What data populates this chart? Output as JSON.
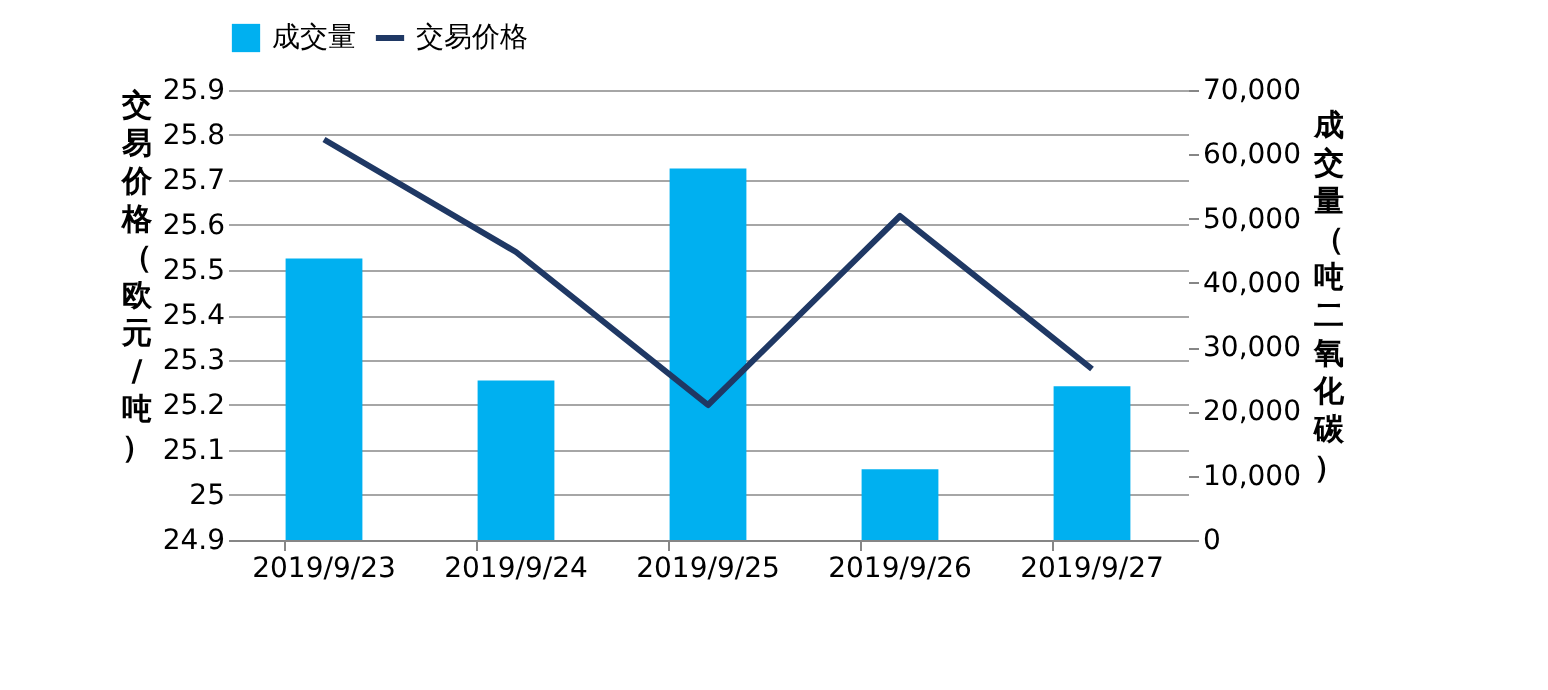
{
  "chart_data": {
    "type": "bar",
    "categories": [
      "2019/9/23",
      "2019/9/24",
      "2019/9/25",
      "2019/9/26",
      "2019/9/27"
    ],
    "series": [
      {
        "name": "成交量",
        "axis": "y2",
        "color": "#00b0f0",
        "values": [
          43800,
          24800,
          57800,
          11000,
          23900
        ]
      },
      {
        "name": "交易价格",
        "type": "line",
        "color": "#1f3864",
        "values": [
          25.79,
          25.54,
          25.2,
          25.62,
          25.28
        ]
      }
    ],
    "ylabel": "交易价格（欧元/吨）",
    "y2label": "成交量（吨二氧化碳）",
    "ylim": [
      24.9,
      25.9
    ],
    "yticks": [
      24.9,
      25,
      25.1,
      25.2,
      25.3,
      25.4,
      25.5,
      25.6,
      25.7,
      25.8,
      25.9
    ],
    "y2lim": [
      0,
      70000
    ],
    "y2ticks": [
      0,
      {
        "value": 10000,
        "label": "10,000"
      },
      {
        "value": 20000,
        "label": "20,000"
      },
      {
        "value": 30000,
        "label": "30,000"
      },
      {
        "value": 40000,
        "label": "40,000"
      },
      {
        "value": 50000,
        "label": "50,000"
      },
      {
        "value": 60000,
        "label": "60,000"
      },
      {
        "value": 70000,
        "label": "70,000"
      }
    ],
    "grid": "y",
    "legend": "top"
  }
}
